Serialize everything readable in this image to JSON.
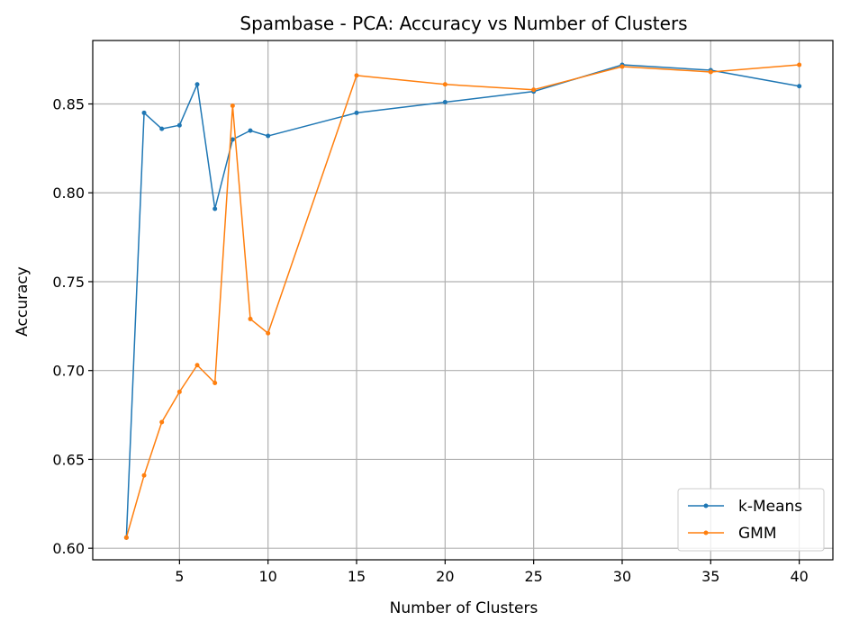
{
  "chart_data": {
    "type": "line",
    "title": "Spambase - PCA: Accuracy vs Number of Clusters",
    "xlabel": "Number of Clusters",
    "ylabel": "Accuracy",
    "xlim": [
      0.1,
      41.9
    ],
    "ylim": [
      0.5935,
      0.8857
    ],
    "xticks": [
      5,
      10,
      15,
      20,
      25,
      30,
      35,
      40
    ],
    "xtick_labels": [
      "5",
      "10",
      "15",
      "20",
      "25",
      "30",
      "35",
      "40"
    ],
    "yticks": [
      0.6,
      0.65,
      0.7,
      0.75,
      0.8,
      0.85
    ],
    "ytick_labels": [
      "0.60",
      "0.65",
      "0.70",
      "0.75",
      "0.80",
      "0.85"
    ],
    "grid": true,
    "legend_position": "lower-right",
    "x": [
      2,
      3,
      4,
      5,
      6,
      7,
      8,
      9,
      10,
      15,
      20,
      25,
      30,
      35,
      40
    ],
    "series": [
      {
        "name": "k-Means",
        "color": "#1f77b4",
        "values": [
          0.606,
          0.845,
          0.836,
          0.838,
          0.861,
          0.791,
          0.83,
          0.835,
          0.832,
          0.845,
          0.851,
          0.857,
          0.872,
          0.869,
          0.86
        ]
      },
      {
        "name": "GMM",
        "color": "#ff7f0e",
        "values": [
          0.606,
          0.641,
          0.671,
          0.688,
          0.703,
          0.693,
          0.849,
          0.729,
          0.721,
          0.866,
          0.861,
          0.858,
          0.871,
          0.868,
          0.872
        ]
      }
    ]
  }
}
